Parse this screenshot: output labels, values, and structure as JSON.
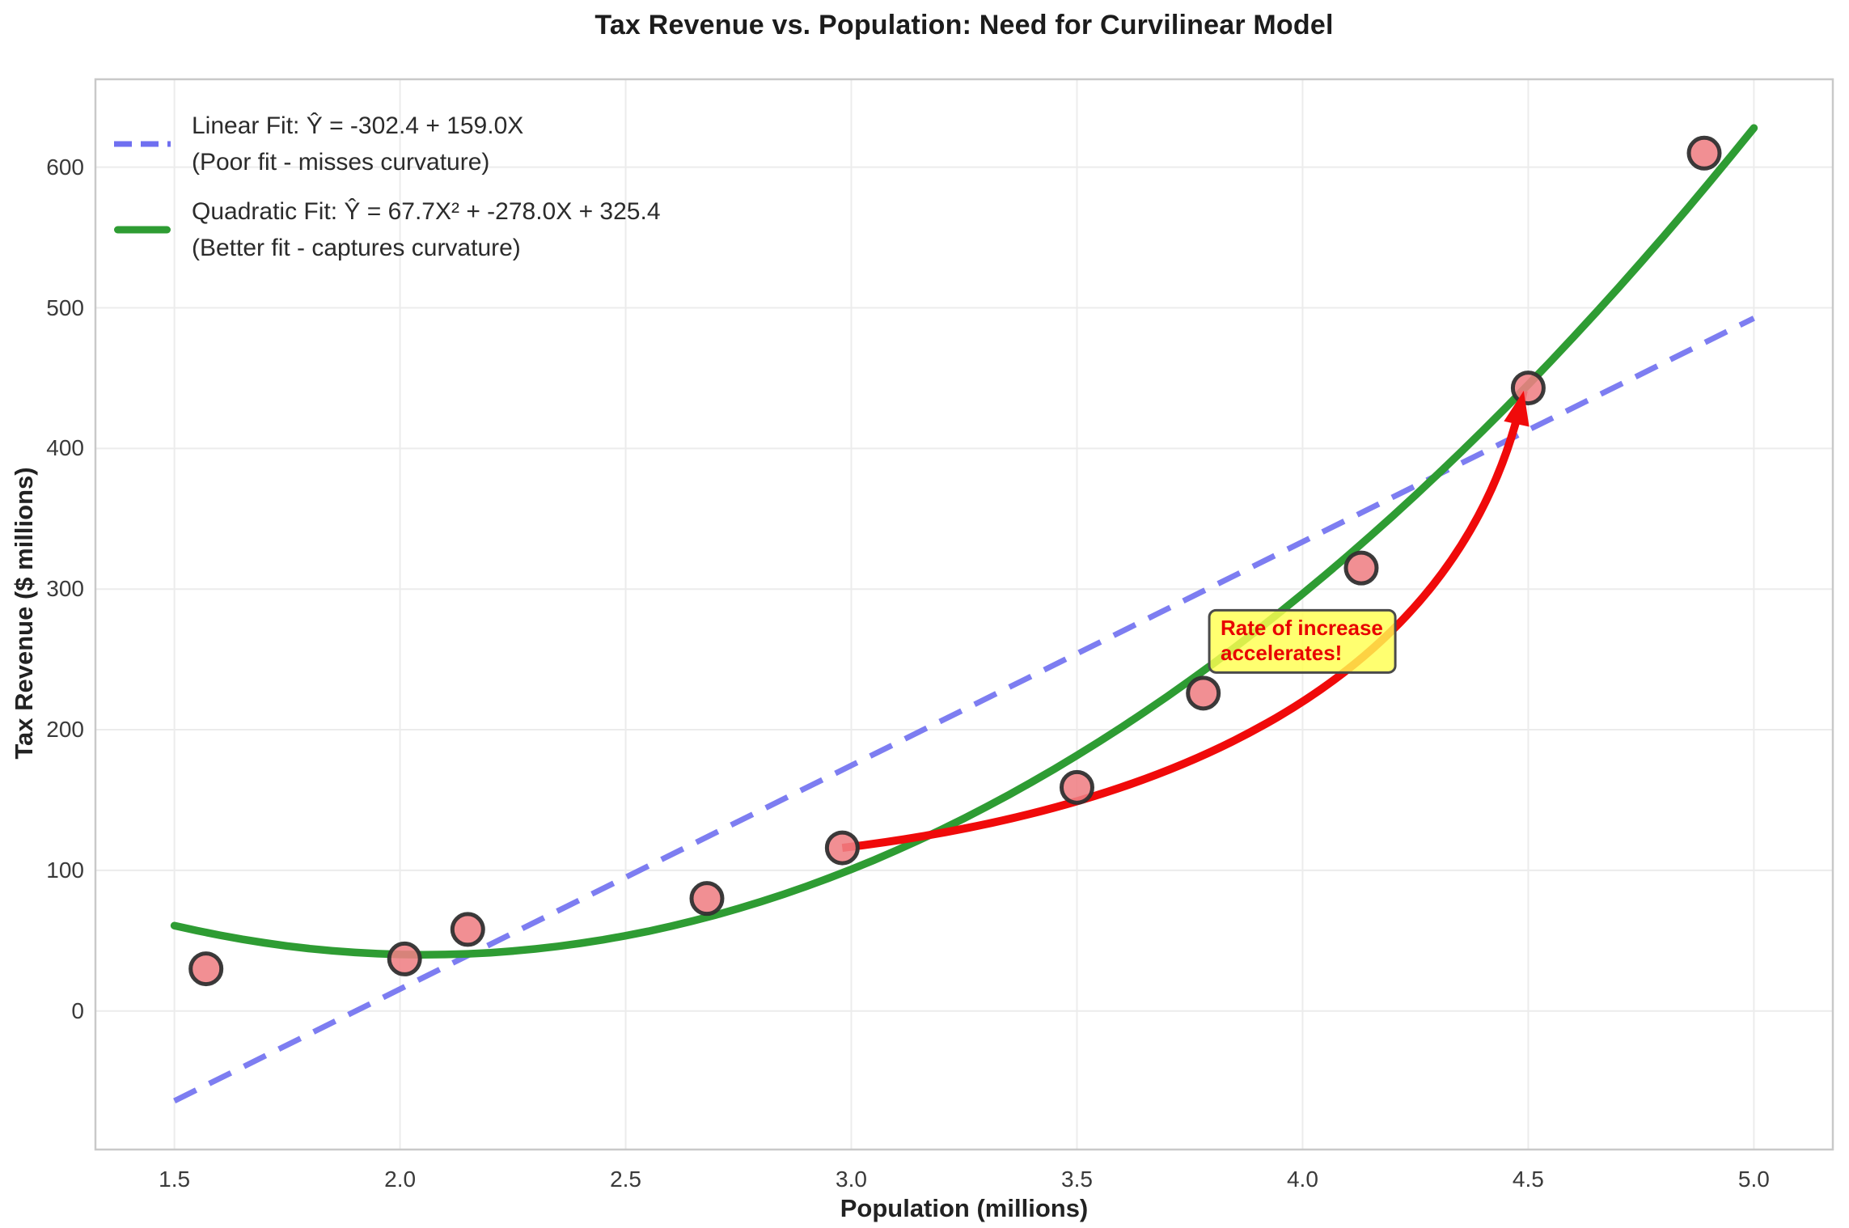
{
  "chart_data": {
    "type": "scatter",
    "title": "Tax Revenue vs. Population: Need for Curvilinear Model",
    "xlabel": "Population (millions)",
    "ylabel": "Tax Revenue ($ millions)",
    "xlim": [
      1.325,
      5.175
    ],
    "ylim": [
      -98.5,
      662.5
    ],
    "xticks": [
      1.5,
      2.0,
      2.5,
      3.0,
      3.5,
      4.0,
      4.5,
      5.0
    ],
    "xtick_labels": [
      "1.5",
      "2.0",
      "2.5",
      "3.0",
      "3.5",
      "4.0",
      "4.5",
      "5.0"
    ],
    "yticks": [
      0,
      100,
      200,
      300,
      400,
      500,
      600
    ],
    "ytick_labels": [
      "0",
      "100",
      "200",
      "300",
      "400",
      "500",
      "600"
    ],
    "grid": true,
    "legend_position": "upper left",
    "points": {
      "x": [
        1.57,
        2.01,
        2.15,
        2.68,
        2.98,
        3.5,
        3.78,
        4.13,
        4.5,
        4.89
      ],
      "y": [
        30,
        37,
        58,
        80,
        116,
        159,
        226,
        315,
        443,
        610
      ],
      "fill_color": "#ef7f84",
      "edge_color": "#303030"
    },
    "fits": [
      {
        "name": "linear",
        "label": "Linear Fit: Ŷ = -302.4 + 159.0X",
        "sublabel": "(Poor fit - misses curvature)",
        "coeffs": [
          -302.4,
          159.0
        ],
        "x_range": [
          1.5,
          5.0
        ],
        "color": "#6f6ff0",
        "dashed": true
      },
      {
        "name": "quadratic",
        "label": "Quadratic Fit: Ŷ = 67.7X² + -278.0X + 325.4",
        "sublabel": "(Better fit - captures curvature)",
        "coeffs": [
          325.4,
          -278.0,
          67.7
        ],
        "x_range": [
          1.5,
          5.0
        ],
        "color": "#2e9c33",
        "dashed": false
      }
    ],
    "annotation": {
      "line1": "Rate of increase",
      "line2": "accelerates!",
      "box_center_xy": [
        4.0,
        263
      ],
      "arrow_start_xy": [
        2.98,
        116
      ],
      "arrow_c1_xy": [
        3.62,
        141
      ],
      "arrow_c2_xy": [
        4.34,
        218
      ],
      "arrow_end_xy": [
        4.49,
        441
      ],
      "box_fill": "rgba(255,255,80,0.82)",
      "box_edge": "#4a4a4a",
      "text_color": "#e80000",
      "arrow_color": "#f00a0a"
    },
    "grid_color": "#ececec",
    "spine_color": "#c9c9c9",
    "background": "#ffffff"
  }
}
